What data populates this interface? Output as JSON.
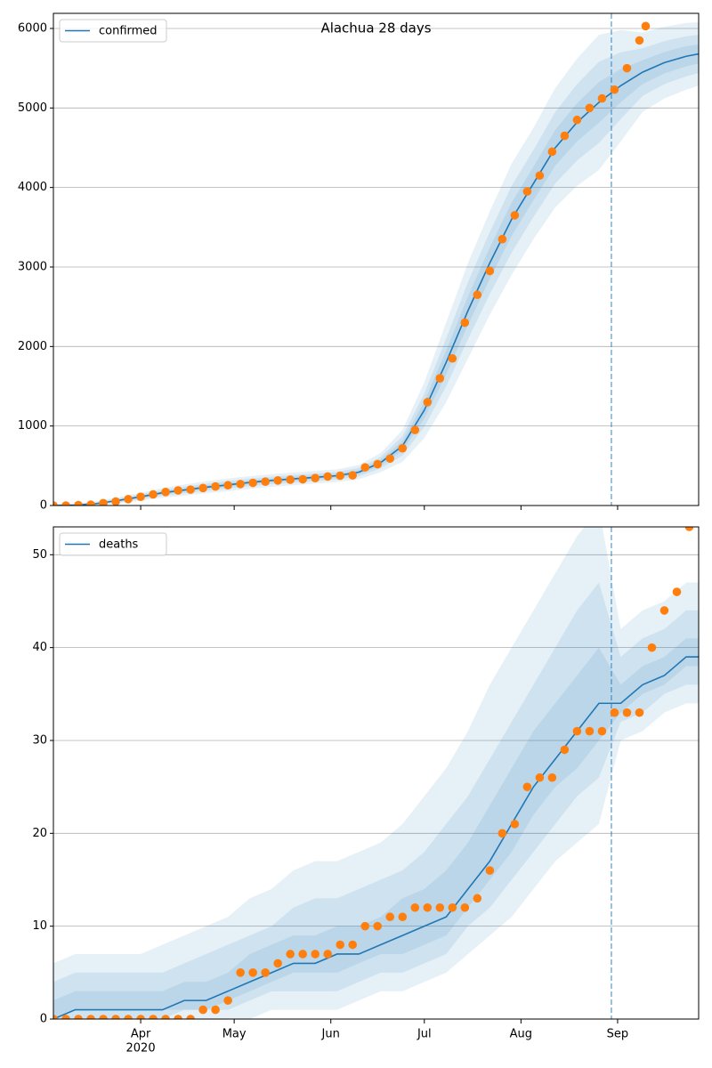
{
  "chart_data": [
    {
      "type": "line",
      "title": "Alachua 28 days",
      "x": [
        64,
        71,
        78,
        85,
        92,
        99,
        106,
        113,
        120,
        127,
        134,
        141,
        148,
        155,
        162,
        169,
        176,
        183,
        190,
        197,
        204,
        211,
        218,
        225,
        232,
        239,
        246,
        253,
        260,
        267,
        271
      ],
      "series": [
        {
          "name": "confirmed",
          "color": "#1f77b4",
          "values": [
            0,
            5,
            25,
            65,
            110,
            160,
            195,
            230,
            260,
            290,
            315,
            335,
            355,
            375,
            420,
            540,
            750,
            1200,
            1800,
            2450,
            3050,
            3600,
            4050,
            4500,
            4820,
            5070,
            5280,
            5450,
            5570,
            5650,
            5680
          ]
        }
      ],
      "band_color": "#1f77b4",
      "bands": [
        {
          "lower": [
            0,
            0,
            0,
            25,
            60,
            100,
            125,
            155,
            180,
            210,
            235,
            255,
            275,
            295,
            330,
            420,
            550,
            850,
            1300,
            1850,
            2400,
            2900,
            3350,
            3750,
            4020,
            4220,
            4580,
            4950,
            5120,
            5230,
            5280
          ],
          "upper": [
            20,
            25,
            55,
            105,
            160,
            220,
            265,
            305,
            340,
            370,
            395,
            415,
            435,
            455,
            510,
            660,
            950,
            1550,
            2300,
            3050,
            3700,
            4300,
            4750,
            5250,
            5620,
            5920,
            5980,
            5950,
            6020,
            6070,
            6080
          ]
        },
        {
          "lower": [
            0,
            0,
            7,
            41,
            80,
            124,
            153,
            185,
            212,
            242,
            267,
            287,
            307,
            327,
            366,
            468,
            630,
            990,
            1500,
            2090,
            2660,
            3180,
            3630,
            4050,
            4340,
            4560,
            4860,
            5150,
            5300,
            5398,
            5440
          ],
          "upper": [
            12,
            17,
            43,
            89,
            140,
            196,
            237,
            275,
            308,
            338,
            363,
            383,
            403,
            423,
            474,
            612,
            870,
            1410,
            2100,
            2810,
            3440,
            4020,
            4470,
            4950,
            5300,
            5580,
            5700,
            5750,
            5840,
            5902,
            5920
          ]
        },
        {
          "lower": [
            0,
            0,
            16,
            53,
            95,
            142,
            174,
            208,
            236,
            266,
            291,
            311,
            331,
            351,
            393,
            504,
            690,
            1095,
            1650,
            2270,
            2855,
            3390,
            3840,
            4275,
            4580,
            4815,
            5070,
            5300,
            5435,
            5524,
            5560
          ],
          "upper": [
            6,
            11,
            34,
            77,
            125,
            178,
            216,
            252,
            284,
            314,
            339,
            359,
            379,
            399,
            447,
            576,
            810,
            1305,
            1950,
            2630,
            3245,
            3810,
            4260,
            4725,
            5060,
            5325,
            5490,
            5600,
            5705,
            5776,
            5800
          ]
        }
      ],
      "observed": {
        "color": "#ff7f0e",
        "x": [
          64,
          68,
          72,
          76,
          80,
          84,
          88,
          92,
          96,
          100,
          104,
          108,
          112,
          116,
          120,
          124,
          128,
          132,
          136,
          140,
          144,
          148,
          152,
          156,
          160,
          164,
          168,
          172,
          176,
          180,
          184,
          188,
          192,
          196,
          200,
          204,
          208,
          212,
          216,
          220,
          224,
          228,
          232,
          236,
          240,
          244,
          248,
          252,
          254
        ],
        "values": [
          0,
          0,
          5,
          10,
          30,
          50,
          80,
          110,
          140,
          170,
          190,
          200,
          220,
          240,
          255,
          270,
          285,
          300,
          315,
          325,
          330,
          345,
          365,
          375,
          380,
          480,
          520,
          590,
          720,
          950,
          1300,
          1600,
          1850,
          2300,
          2650,
          2950,
          3350,
          3650,
          3950,
          4150,
          4450,
          4650,
          4850,
          5000,
          5120,
          5230,
          5500,
          5850,
          6030
        ]
      },
      "vline": 243,
      "xlim": [
        64,
        271
      ],
      "xticks": [
        92,
        122,
        153,
        183,
        214,
        245
      ],
      "ylim": [
        0,
        6190
      ],
      "yticks": [
        0,
        1000,
        2000,
        3000,
        4000,
        5000,
        6000
      ],
      "grid": true,
      "legend": "upper left"
    },
    {
      "type": "line",
      "x": [
        64,
        71,
        78,
        85,
        92,
        99,
        106,
        113,
        120,
        127,
        134,
        141,
        148,
        155,
        162,
        169,
        176,
        183,
        190,
        197,
        204,
        211,
        218,
        225,
        232,
        239,
        246,
        253,
        260,
        267,
        271
      ],
      "series": [
        {
          "name": "deaths",
          "color": "#1f77b4",
          "values": [
            0,
            1,
            1,
            1,
            1,
            1,
            2,
            2,
            3,
            4,
            5,
            6,
            6,
            7,
            7,
            8,
            9,
            10,
            11,
            14,
            17,
            21,
            25,
            28,
            31,
            34,
            34,
            36,
            37,
            39,
            39
          ]
        }
      ],
      "band_color": "#1f77b4",
      "bands": [
        {
          "lower": [
            0,
            0,
            0,
            0,
            0,
            0,
            0,
            0,
            0,
            0,
            1,
            1,
            1,
            1,
            2,
            3,
            3,
            4,
            5,
            7,
            9,
            11,
            14,
            17,
            19,
            21,
            30,
            31,
            33,
            34,
            34
          ],
          "upper": [
            6,
            7,
            7,
            7,
            7,
            8,
            9,
            10,
            11,
            13,
            14,
            16,
            17,
            17,
            18,
            19,
            21,
            24,
            27,
            31,
            36,
            40,
            44,
            48,
            52,
            55,
            42,
            44,
            45,
            47,
            47
          ]
        },
        {
          "lower": [
            0,
            0,
            0,
            0,
            0,
            0,
            1,
            1,
            1,
            2,
            3,
            3,
            3,
            3,
            4,
            5,
            5,
            6,
            7,
            10,
            12,
            15,
            18,
            21,
            24,
            26,
            32,
            33,
            35,
            36,
            36
          ],
          "upper": [
            4,
            5,
            5,
            5,
            5,
            5,
            6,
            7,
            8,
            9,
            10,
            12,
            13,
            13,
            14,
            15,
            16,
            18,
            21,
            24,
            28,
            32,
            36,
            40,
            44,
            47,
            39,
            41,
            42,
            44,
            44
          ]
        },
        {
          "lower": [
            0,
            1,
            1,
            1,
            1,
            1,
            1,
            1,
            2,
            3,
            4,
            5,
            5,
            5,
            6,
            7,
            7,
            8,
            9,
            12,
            15,
            18,
            22,
            25,
            27,
            30,
            33,
            35,
            36,
            38,
            38
          ],
          "upper": [
            2,
            3,
            3,
            3,
            3,
            3,
            4,
            4,
            5,
            7,
            8,
            9,
            9,
            10,
            10,
            11,
            13,
            14,
            16,
            19,
            23,
            27,
            31,
            34,
            37,
            40,
            36,
            38,
            39,
            41,
            41
          ]
        }
      ],
      "observed": {
        "color": "#ff7f0e",
        "x": [
          64,
          68,
          72,
          76,
          80,
          84,
          88,
          92,
          96,
          100,
          104,
          108,
          112,
          116,
          120,
          124,
          128,
          132,
          136,
          140,
          144,
          148,
          152,
          156,
          160,
          164,
          168,
          172,
          176,
          180,
          184,
          188,
          192,
          196,
          200,
          204,
          208,
          212,
          216,
          220,
          224,
          228,
          232,
          236,
          240,
          244,
          248,
          252,
          256,
          260,
          264,
          268
        ],
        "values": [
          0,
          0,
          0,
          0,
          0,
          0,
          0,
          0,
          0,
          0,
          0,
          0,
          1,
          1,
          2,
          5,
          5,
          5,
          6,
          7,
          7,
          7,
          7,
          8,
          8,
          10,
          10,
          11,
          11,
          12,
          12,
          12,
          12,
          12,
          13,
          16,
          20,
          21,
          25,
          26,
          26,
          29,
          31,
          31,
          31,
          33,
          33,
          33,
          40,
          44,
          46,
          53
        ]
      },
      "vline": 243,
      "xlim": [
        64,
        271
      ],
      "xticks": [
        {
          "value": 92,
          "label": "Apr"
        },
        {
          "value": 122,
          "label": "May"
        },
        {
          "value": 153,
          "label": "Jun"
        },
        {
          "value": 183,
          "label": "Jul"
        },
        {
          "value": 214,
          "label": "Aug"
        },
        {
          "value": 245,
          "label": "Sep"
        }
      ],
      "year_label": "2020",
      "ylim": [
        0,
        53
      ],
      "yticks": [
        0,
        10,
        20,
        30,
        40,
        50
      ],
      "grid": true,
      "legend": "upper left"
    }
  ]
}
